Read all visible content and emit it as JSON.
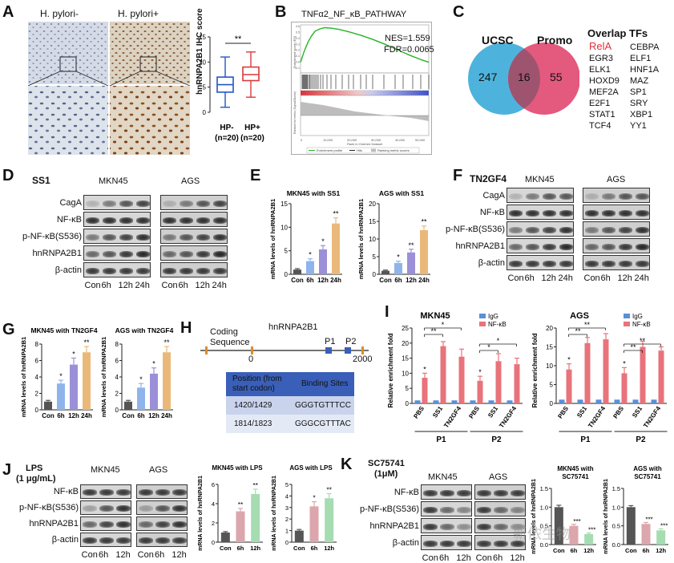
{
  "panel_letters": [
    "A",
    "B",
    "C",
    "D",
    "E",
    "F",
    "G",
    "H",
    "I",
    "J",
    "K"
  ],
  "panelA": {
    "img_left_label": "H. pylori-",
    "img_right_label": "H. pylori+",
    "ylabel": "hnRNPA2B1 IHC score",
    "sig": "**",
    "yticks": [
      "0",
      "5",
      "10",
      "15"
    ],
    "groups": [
      "HP-",
      "HP+"
    ],
    "group_n": [
      "(n=20)",
      "(n=20)"
    ]
  },
  "panelB": {
    "title": "TNFα2_NF_κB_PATHWAY",
    "nes": "NES=1.559",
    "fdr": "FDR=0.0065",
    "ylabel_top": "Enrichment score (ES)",
    "ylabel_bottom": "Ranked list metric (Signal2Noise)",
    "xlabel": "Rank in Ordered Dataset",
    "legend": [
      "Enrichment profile",
      "Hits",
      "Ranking metric scores"
    ]
  },
  "panelC": {
    "left_set": "UCSC",
    "right_set": "Promo",
    "left_count": "247",
    "overlap_count": "16",
    "right_count": "55",
    "list_title": "Overlap TFs",
    "tfs": [
      [
        "RelA",
        "CEBPA"
      ],
      [
        "EGR3",
        "ELF1"
      ],
      [
        "ELK1",
        "HNF1A"
      ],
      [
        "HOXD9",
        "MAZ"
      ],
      [
        "MEF2A",
        "SP1"
      ],
      [
        "E2F1",
        "SRY"
      ],
      [
        "STAT1",
        "XBP1"
      ],
      [
        "TCF4",
        "YY1"
      ]
    ],
    "highlight_color": "#e0303a",
    "left_color": "#4db3dc",
    "right_color": "#e4597e"
  },
  "panelD": {
    "treatment": "SS1",
    "cell_lines": [
      "MKN45",
      "AGS"
    ],
    "rows": [
      "CagA",
      "NF-κB",
      "p-NF-κB(S536)",
      "hnRNPA2B1",
      "β-actin"
    ],
    "timepoints": [
      "Con",
      "6h",
      "12h",
      "24h"
    ]
  },
  "panelF": {
    "treatment": "TN2GF4",
    "cell_lines": [
      "MKN45",
      "AGS"
    ],
    "rows": [
      "CagA",
      "NF-κB",
      "p-NF-κB(S536)",
      "hnRNPA2B1",
      "β-actin"
    ],
    "timepoints": [
      "Con",
      "6h",
      "12h",
      "24h"
    ]
  },
  "panelH": {
    "gene": "hnRNPA2B1",
    "coding_label": "Coding",
    "sequence_label": "Sequence",
    "zero_tick": "0",
    "end_tick": "2000",
    "sites": [
      "P1",
      "P2"
    ],
    "table_header": [
      "Position (from start codon)",
      "Binding Sites"
    ],
    "table_rows": [
      [
        "1420/1429",
        "GGGTGTTTCC"
      ],
      [
        "1814/1823",
        "GGGCGTTTAC"
      ]
    ]
  },
  "panelJ": {
    "treatment_line1": "LPS",
    "treatment_line2": "(1 μg/mL)",
    "cell_lines": [
      "MKN45",
      "AGS"
    ],
    "rows": [
      "NF-κB",
      "p-NF-κB(S536)",
      "hnRNPA2B1",
      "β-actin"
    ],
    "timepoints": [
      "Con",
      "6h",
      "12h"
    ]
  },
  "panelK": {
    "treatment_line1": "SC75741",
    "treatment_line2": "(1μM)",
    "cell_lines": [
      "MKN45",
      "AGS"
    ],
    "rows": [
      "NF-κB",
      "p-NF-κB(S536)",
      "hnRNPA2B1",
      "β-actin"
    ],
    "timepoints": [
      "Con",
      "6h",
      "12h"
    ]
  },
  "watermark": "新侬生物",
  "chart_data": [
    {
      "id": "A",
      "type": "box",
      "categories": [
        "HP- (n=20)",
        "HP+ (n=20)"
      ],
      "ylabel": "hnRNPA2B1 IHC score",
      "ylim": [
        0,
        15
      ],
      "boxes": [
        {
          "min": 1,
          "q1": 4,
          "median": 5.5,
          "q3": 7,
          "max": 11,
          "color": "#2355c8"
        },
        {
          "min": 3,
          "q1": 6.3,
          "median": 7.5,
          "q3": 9,
          "max": 12,
          "color": "#d93a3a"
        }
      ],
      "annotation": "**"
    },
    {
      "id": "B",
      "type": "line",
      "title": "TNFα2_NF_κB_PATHWAY",
      "xlabel": "Rank in Ordered Dataset",
      "ylabel": "Enrichment score (ES)",
      "xticks": [
        "0",
        "10,000",
        "20,000",
        "30,000",
        "40,000",
        "50,000"
      ],
      "yticks": [
        "-0.1",
        "0.0",
        "0.1",
        "0.2",
        "0.3",
        "0.4",
        "0.5",
        "0.6"
      ],
      "x": [
        0,
        1500,
        3000,
        4500,
        6000,
        8000,
        10000,
        13000,
        16000,
        20000,
        25000,
        30000,
        35000,
        40000,
        45000,
        50000,
        53000
      ],
      "y": [
        0,
        0.18,
        0.33,
        0.44,
        0.52,
        0.56,
        0.58,
        0.57,
        0.55,
        0.51,
        0.45,
        0.38,
        0.3,
        0.21,
        0.12,
        0.04,
        0.0
      ]
    },
    {
      "id": "E1",
      "type": "bar",
      "title": "MKN45 with SS1",
      "ylabel": "mRNA levels of hnRNPA2B1",
      "categories": [
        "Con",
        "6h",
        "12h",
        "24h"
      ],
      "values": [
        1,
        2.8,
        5.3,
        10.8
      ],
      "errors": [
        0.2,
        0.5,
        0.8,
        1.2
      ],
      "colors": [
        "#555555",
        "#8fb4ec",
        "#9b90d8",
        "#eab97a"
      ],
      "ylim": [
        0,
        15
      ],
      "yticks": [
        "0",
        "5",
        "10",
        "15"
      ],
      "annotations": [
        "",
        "*",
        "*",
        "**"
      ]
    },
    {
      "id": "E2",
      "type": "bar",
      "title": "AGS with SS1",
      "ylabel": "mRNA levels of hnRNPA2B1",
      "categories": [
        "Con",
        "6h",
        "12h",
        "24h"
      ],
      "values": [
        1,
        3.2,
        6.2,
        12.5
      ],
      "errors": [
        0.2,
        0.5,
        0.9,
        1.2
      ],
      "colors": [
        "#555555",
        "#8fb4ec",
        "#9b90d8",
        "#eab97a"
      ],
      "ylim": [
        0,
        20
      ],
      "yticks": [
        "0",
        "5",
        "10",
        "15",
        "20"
      ],
      "annotations": [
        "",
        "*",
        "**",
        "**"
      ]
    },
    {
      "id": "G1",
      "type": "bar",
      "title": "MKN45 with TN2GF4",
      "ylabel": "mRNA levels of hnRNPA2B1",
      "categories": [
        "Con",
        "6h",
        "12h",
        "24h"
      ],
      "values": [
        1,
        3.2,
        5.5,
        7
      ],
      "errors": [
        0.15,
        0.4,
        0.8,
        0.7
      ],
      "colors": [
        "#555555",
        "#8fb4ec",
        "#9b90d8",
        "#eab97a"
      ],
      "ylim": [
        0,
        8
      ],
      "yticks": [
        "0",
        "2",
        "4",
        "6",
        "8"
      ],
      "annotations": [
        "",
        "*",
        "*",
        "**"
      ]
    },
    {
      "id": "G2",
      "type": "bar",
      "title": "AGS with TN2GF4",
      "ylabel": "mRNA levels of hnRNPA2B1",
      "categories": [
        "Con",
        "6h",
        "12h",
        "24h"
      ],
      "values": [
        1,
        2.7,
        4.4,
        7
      ],
      "errors": [
        0.15,
        0.5,
        0.7,
        0.7
      ],
      "colors": [
        "#555555",
        "#8fb4ec",
        "#9b90d8",
        "#eab97a"
      ],
      "ylim": [
        0,
        8
      ],
      "yticks": [
        "0",
        "2",
        "4",
        "6",
        "8"
      ],
      "annotations": [
        "",
        "*",
        "*",
        "**"
      ]
    },
    {
      "id": "I1",
      "type": "bar",
      "title": "MKN45",
      "ylabel": "Relative enrichment fold",
      "categories": [
        "PBS",
        "SS1",
        "TN2GF4",
        "PBS",
        "SS1",
        "TN2GF4"
      ],
      "groups": [
        "P1",
        "P2"
      ],
      "series": [
        {
          "name": "IgG",
          "color": "#5b8fd8",
          "values": [
            1,
            1,
            1,
            1,
            1,
            1
          ]
        },
        {
          "name": "NF-κB",
          "color": "#e8737b",
          "values": [
            8.5,
            19,
            15.5,
            7.5,
            14,
            13
          ]
        }
      ],
      "errors": [
        1.5,
        1.5,
        2.5,
        1.5,
        2.5,
        2.0
      ],
      "ylim": [
        0,
        25
      ],
      "yticks": [
        "0",
        "5",
        "10",
        "15",
        "20",
        "25"
      ],
      "annotations": [
        "*",
        "**",
        "*",
        "*",
        "*",
        "*"
      ]
    },
    {
      "id": "I2",
      "type": "bar",
      "title": "AGS",
      "ylabel": "Relative enrichment fold",
      "categories": [
        "PBS",
        "SS1",
        "TN2GF4",
        "PBS",
        "SS1",
        "TN2GF4"
      ],
      "groups": [
        "P1",
        "P2"
      ],
      "series": [
        {
          "name": "IgG",
          "color": "#5b8fd8",
          "values": [
            1,
            1,
            1,
            1,
            1,
            1
          ]
        },
        {
          "name": "NF-κB",
          "color": "#e8737b",
          "values": [
            9,
            16,
            17,
            8,
            15,
            14
          ]
        }
      ],
      "errors": [
        1.5,
        1.5,
        1.5,
        1.5,
        1.5,
        1.0
      ],
      "ylim": [
        0,
        20
      ],
      "yticks": [
        "0",
        "5",
        "10",
        "15",
        "20"
      ],
      "annotations": [
        "*",
        "**",
        "**",
        "*",
        "**",
        "**"
      ]
    },
    {
      "id": "J1",
      "type": "bar",
      "title": "MKN45 with LPS",
      "ylabel": "mRNA levels of hnRNPA2B1",
      "categories": [
        "Con",
        "6h",
        "12h"
      ],
      "values": [
        1,
        3.2,
        5
      ],
      "errors": [
        0.1,
        0.3,
        0.5
      ],
      "colors": [
        "#555555",
        "#dba6ac",
        "#a6dcb1"
      ],
      "ylim": [
        0,
        6
      ],
      "yticks": [
        "0",
        "2",
        "4",
        "6"
      ],
      "annotations": [
        "",
        "**",
        "**"
      ]
    },
    {
      "id": "J2",
      "type": "bar",
      "title": "AGS with LPS",
      "ylabel": "mRNA levels of hnRNPA2B1",
      "categories": [
        "Con",
        "6h",
        "12h"
      ],
      "values": [
        1,
        3.1,
        3.8
      ],
      "errors": [
        0.1,
        0.4,
        0.4
      ],
      "colors": [
        "#555555",
        "#dba6ac",
        "#a6dcb1"
      ],
      "ylim": [
        0,
        5
      ],
      "yticks": [
        "0",
        "1",
        "2",
        "3",
        "4",
        "5"
      ],
      "annotations": [
        "",
        "*",
        "**"
      ]
    },
    {
      "id": "K1",
      "type": "bar",
      "title": "MKN45 with SC75741",
      "ylabel": "mRNA levels of hnRNPA2B1",
      "categories": [
        "Con",
        "6h",
        "12h"
      ],
      "values": [
        1,
        0.5,
        0.28
      ],
      "errors": [
        0.05,
        0.04,
        0.03
      ],
      "colors": [
        "#555555",
        "#dba6ac",
        "#a6dcb1"
      ],
      "ylim": [
        0,
        1.5
      ],
      "yticks": [
        "0.0",
        "0.5",
        "1.0",
        "1.5"
      ],
      "annotations": [
        "",
        "***",
        "***"
      ]
    },
    {
      "id": "K2",
      "type": "bar",
      "title": "AGS with SC75741",
      "ylabel": "mRNA levels of hnRNPA2B1",
      "categories": [
        "Con",
        "6h",
        "12h"
      ],
      "values": [
        1,
        0.55,
        0.38
      ],
      "errors": [
        0.04,
        0.04,
        0.04
      ],
      "colors": [
        "#555555",
        "#dba6ac",
        "#a6dcb1"
      ],
      "ylim": [
        0,
        1.5
      ],
      "yticks": [
        "0.0",
        "0.5",
        "1.0",
        "1.5"
      ],
      "annotations": [
        "",
        "***",
        "***"
      ]
    }
  ]
}
